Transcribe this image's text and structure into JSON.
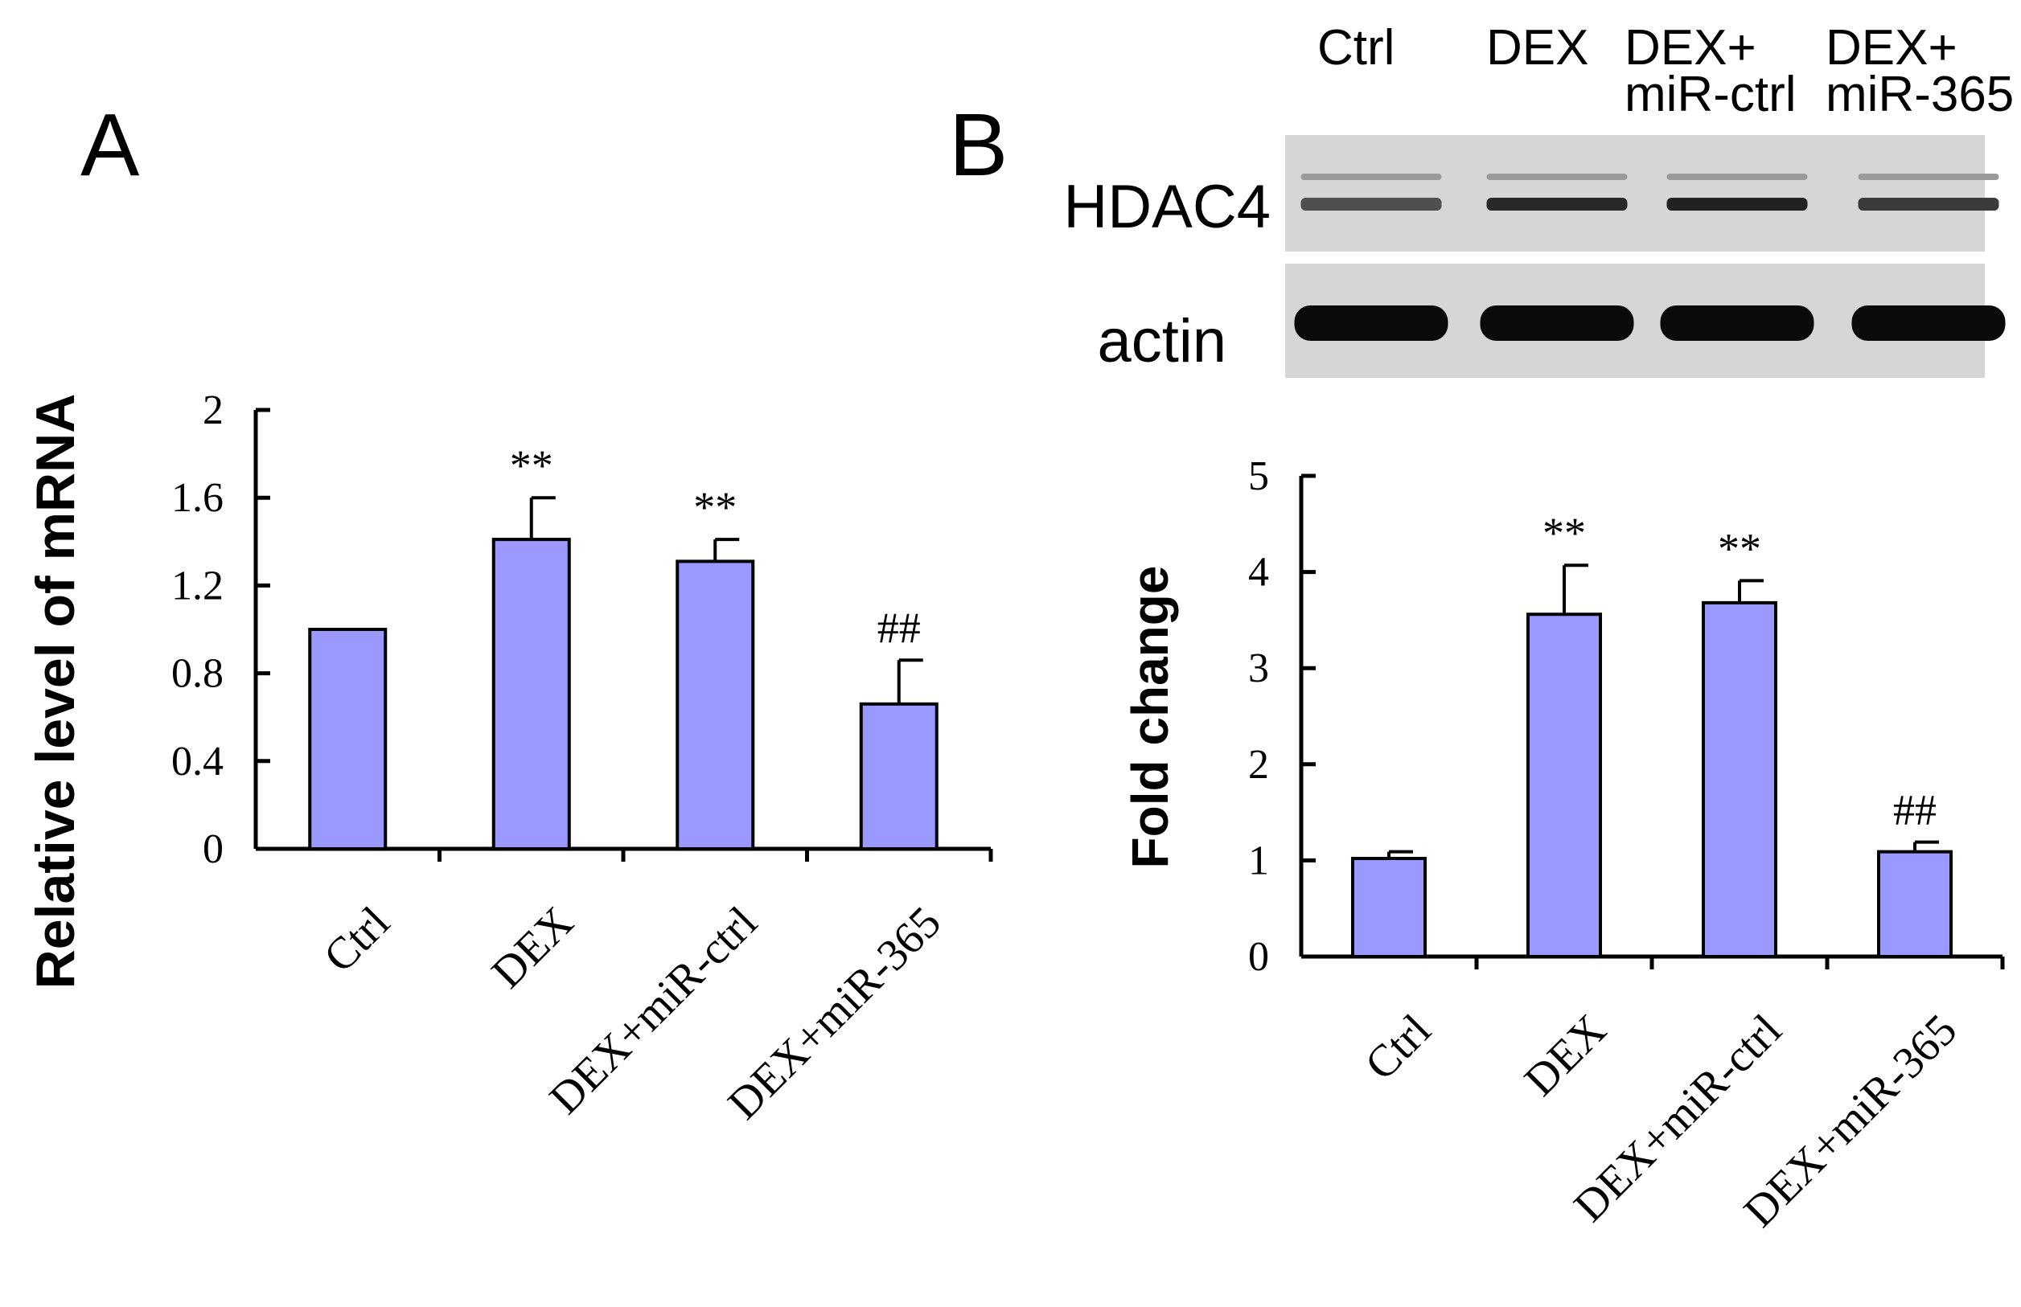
{
  "panels": {
    "a_label": "A",
    "b_label": "B"
  },
  "blot": {
    "lane_labels": [
      [
        "Ctrl"
      ],
      [
        "DEX"
      ],
      [
        "DEX+",
        "miR-ctrl"
      ],
      [
        "DEX+",
        "miR-365"
      ]
    ],
    "row_labels": [
      "HDAC4",
      "actin"
    ],
    "band_intensity": {
      "HDAC4": [
        0.55,
        0.85,
        0.9,
        0.7
      ],
      "actin": [
        1.0,
        1.0,
        1.0,
        1.0
      ]
    }
  },
  "colors": {
    "bar_fill": "#9999FF",
    "bar_stroke": "#000000",
    "blot_background": "#d6d6d6"
  },
  "chart_data": [
    {
      "type": "bar",
      "panel": "A",
      "title": "",
      "xlabel": "",
      "ylabel": "Relative level of mRNA",
      "ylim": [
        0,
        2
      ],
      "yticks": [
        "0",
        "0.4",
        "0.8",
        "1.2",
        "1.6",
        "2"
      ],
      "categories": [
        "Ctrl",
        "DEX",
        "DEX+miR-ctrl",
        "DEX+miR-365"
      ],
      "values": [
        1.0,
        1.41,
        1.31,
        0.66
      ],
      "errors": [
        0,
        0.19,
        0.1,
        0.2
      ],
      "annotations": [
        "",
        "**",
        "**",
        "##"
      ],
      "grid": false
    },
    {
      "type": "bar",
      "panel": "B",
      "title": "",
      "xlabel": "",
      "ylabel": "Fold change",
      "ylim": [
        0,
        5
      ],
      "yticks": [
        "0",
        "1",
        "2",
        "3",
        "4",
        "5"
      ],
      "categories": [
        "Ctrl",
        "DEX",
        "DEX+miR-ctrl",
        "DEX+miR-365"
      ],
      "values": [
        1.02,
        3.56,
        3.68,
        1.09
      ],
      "errors": [
        0.07,
        0.51,
        0.23,
        0.1
      ],
      "annotations": [
        "",
        "**",
        "**",
        "##"
      ],
      "grid": false
    }
  ]
}
